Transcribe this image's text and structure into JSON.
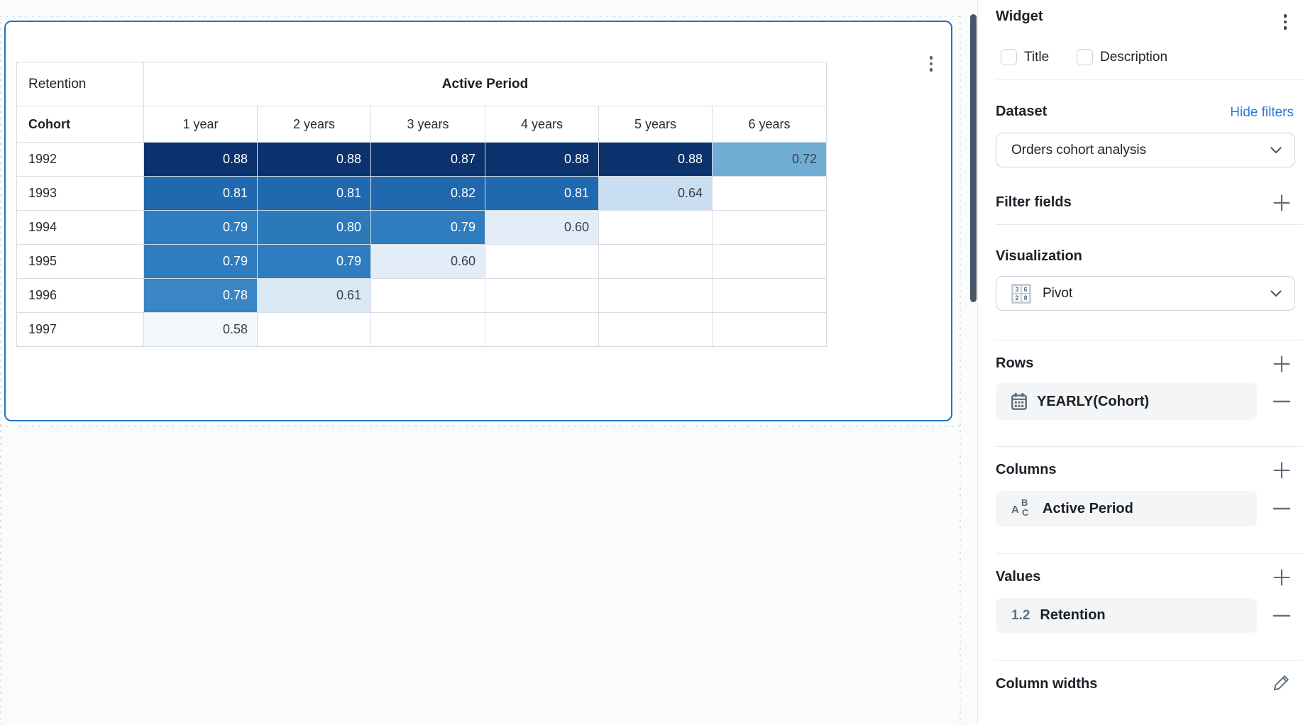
{
  "pivot": {
    "corner_label": "Retention",
    "column_group_label": "Active Period",
    "row_dim_label": "Cohort",
    "col_headers": [
      "1 year",
      "2 years",
      "3 years",
      "4 years",
      "5 years",
      "6 years"
    ],
    "rows": [
      {
        "cohort": "1992",
        "cells": [
          {
            "v": "0.88",
            "bg": "#0B326C",
            "fg": "#FFFFFF"
          },
          {
            "v": "0.88",
            "bg": "#0B326C",
            "fg": "#FFFFFF"
          },
          {
            "v": "0.87",
            "bg": "#0B326C",
            "fg": "#FFFFFF"
          },
          {
            "v": "0.88",
            "bg": "#0B326C",
            "fg": "#FFFFFF"
          },
          {
            "v": "0.88",
            "bg": "#0B326C",
            "fg": "#FFFFFF"
          },
          {
            "v": "0.72",
            "bg": "#70ADD5",
            "fg": "#394049"
          }
        ]
      },
      {
        "cohort": "1993",
        "cells": [
          {
            "v": "0.81",
            "bg": "#2069AE",
            "fg": "#FFFFFF"
          },
          {
            "v": "0.81",
            "bg": "#2069AE",
            "fg": "#FFFFFF"
          },
          {
            "v": "0.82",
            "bg": "#1F68AD",
            "fg": "#FFFFFF"
          },
          {
            "v": "0.81",
            "bg": "#2069AE",
            "fg": "#FFFFFF"
          },
          {
            "v": "0.64",
            "bg": "#C9DEF0",
            "fg": "#394049"
          },
          {
            "v": "",
            "bg": "#FFFFFF",
            "fg": "#394049"
          }
        ]
      },
      {
        "cohort": "1994",
        "cells": [
          {
            "v": "0.79",
            "bg": "#2F7DBE",
            "fg": "#FFFFFF"
          },
          {
            "v": "0.80",
            "bg": "#2C79BA",
            "fg": "#FFFFFF"
          },
          {
            "v": "0.79",
            "bg": "#2F7DBE",
            "fg": "#FFFFFF"
          },
          {
            "v": "0.60",
            "bg": "#E3EDF8",
            "fg": "#394049"
          },
          {
            "v": "",
            "bg": "#FFFFFF",
            "fg": "#394049"
          },
          {
            "v": "",
            "bg": "#FFFFFF",
            "fg": "#394049"
          }
        ]
      },
      {
        "cohort": "1995",
        "cells": [
          {
            "v": "0.79",
            "bg": "#2F7DBE",
            "fg": "#FFFFFF"
          },
          {
            "v": "0.79",
            "bg": "#2F7DBE",
            "fg": "#FFFFFF"
          },
          {
            "v": "0.60",
            "bg": "#E3EDF8",
            "fg": "#394049"
          },
          {
            "v": "",
            "bg": "#FFFFFF",
            "fg": "#394049"
          },
          {
            "v": "",
            "bg": "#FFFFFF",
            "fg": "#394049"
          },
          {
            "v": "",
            "bg": "#FFFFFF",
            "fg": "#394049"
          }
        ]
      },
      {
        "cohort": "1996",
        "cells": [
          {
            "v": "0.78",
            "bg": "#3A85C3",
            "fg": "#FFFFFF"
          },
          {
            "v": "0.61",
            "bg": "#DAE8F5",
            "fg": "#394049"
          },
          {
            "v": "",
            "bg": "#FFFFFF",
            "fg": "#394049"
          },
          {
            "v": "",
            "bg": "#FFFFFF",
            "fg": "#394049"
          },
          {
            "v": "",
            "bg": "#FFFFFF",
            "fg": "#394049"
          },
          {
            "v": "",
            "bg": "#FFFFFF",
            "fg": "#394049"
          }
        ]
      },
      {
        "cohort": "1997",
        "cells": [
          {
            "v": "0.58",
            "bg": "#F2F7FC",
            "fg": "#394049"
          },
          {
            "v": "",
            "bg": "#FFFFFF",
            "fg": "#394049"
          },
          {
            "v": "",
            "bg": "#FFFFFF",
            "fg": "#394049"
          },
          {
            "v": "",
            "bg": "#FFFFFF",
            "fg": "#394049"
          },
          {
            "v": "",
            "bg": "#FFFFFF",
            "fg": "#394049"
          },
          {
            "v": "",
            "bg": "#FFFFFF",
            "fg": "#394049"
          }
        ]
      }
    ]
  },
  "panel": {
    "title": "Widget",
    "checkboxes": [
      {
        "label": "Title",
        "checked": false
      },
      {
        "label": "Description",
        "checked": false
      }
    ],
    "dataset": {
      "heading": "Dataset",
      "link_label": "Hide filters",
      "selected_value": "Orders cohort analysis"
    },
    "filter_fields": {
      "heading": "Filter fields"
    },
    "visualization": {
      "heading": "Visualization",
      "selected_value": "Pivot",
      "icon_numbers": [
        "3",
        "6",
        "2",
        "8"
      ]
    },
    "rows_section": {
      "heading": "Rows",
      "item_label": "YEARLY(Cohort)"
    },
    "columns_section": {
      "heading": "Columns",
      "item_label": "Active Period"
    },
    "values_section": {
      "heading": "Values",
      "item_prefix": "1.2",
      "item_label": "Retention"
    },
    "column_widths": {
      "heading": "Column widths"
    }
  },
  "colors": {
    "accent_blue": "#2473BE",
    "link_blue": "#2B7AD2",
    "icon_slate": "#5A6B7B",
    "heat_scale": [
      "#F2F7FC",
      "#E3EDF8",
      "#DAE8F5",
      "#C9DEF0",
      "#70ADD5",
      "#3A85C3",
      "#2F7DBE",
      "#2069AE",
      "#0B326C"
    ]
  }
}
